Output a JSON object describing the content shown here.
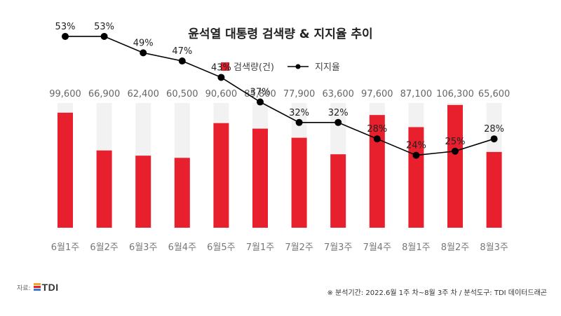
{
  "chart_data": {
    "type": "bar",
    "title": "윤석열 대통령 검색량 & 지지율 추이",
    "legend": [
      {
        "name": "검색량(건)",
        "kind": "bar",
        "color": "#e8202e"
      },
      {
        "name": "지지율",
        "kind": "line",
        "color": "#000000"
      }
    ],
    "legend_placement": "top-center",
    "grid": false,
    "categories": [
      "6월1주",
      "6월2주",
      "6월3주",
      "6월4주",
      "6월5주",
      "7월1주",
      "7월2주",
      "7월3주",
      "7월4주",
      "8월1주",
      "8월2주",
      "8월3주"
    ],
    "series": [
      {
        "name": "검색량(건)",
        "type": "bar",
        "values": [
          99600,
          66900,
          62400,
          60500,
          90600,
          85800,
          77900,
          63600,
          97600,
          87100,
          106300,
          65600
        ],
        "labels": [
          "99,600",
          "66,900",
          "62,400",
          "60,500",
          "90,600",
          "85,800",
          "77,900",
          "63,600",
          "97,600",
          "87,100",
          "106,300",
          "65,600"
        ]
      },
      {
        "name": "지지율",
        "type": "line",
        "values": [
          53,
          53,
          49,
          47,
          43,
          37,
          32,
          32,
          28,
          24,
          25,
          28
        ],
        "labels": [
          "53%",
          "53%",
          "49%",
          "47%",
          "43%",
          "37%",
          "32%",
          "32%",
          "28%",
          "24%",
          "25%",
          "28%"
        ]
      }
    ],
    "bar_color": "#e8202e",
    "bar_track_color": "#f2f2f2",
    "line_color": "#000000"
  },
  "footer": {
    "source_label": "자료:",
    "logo_text": "TDI",
    "note": "※ 분석기간: 2022.6월 1주 차~8월 3주 차 / 분석도구: TDI 데이터드래곤"
  }
}
